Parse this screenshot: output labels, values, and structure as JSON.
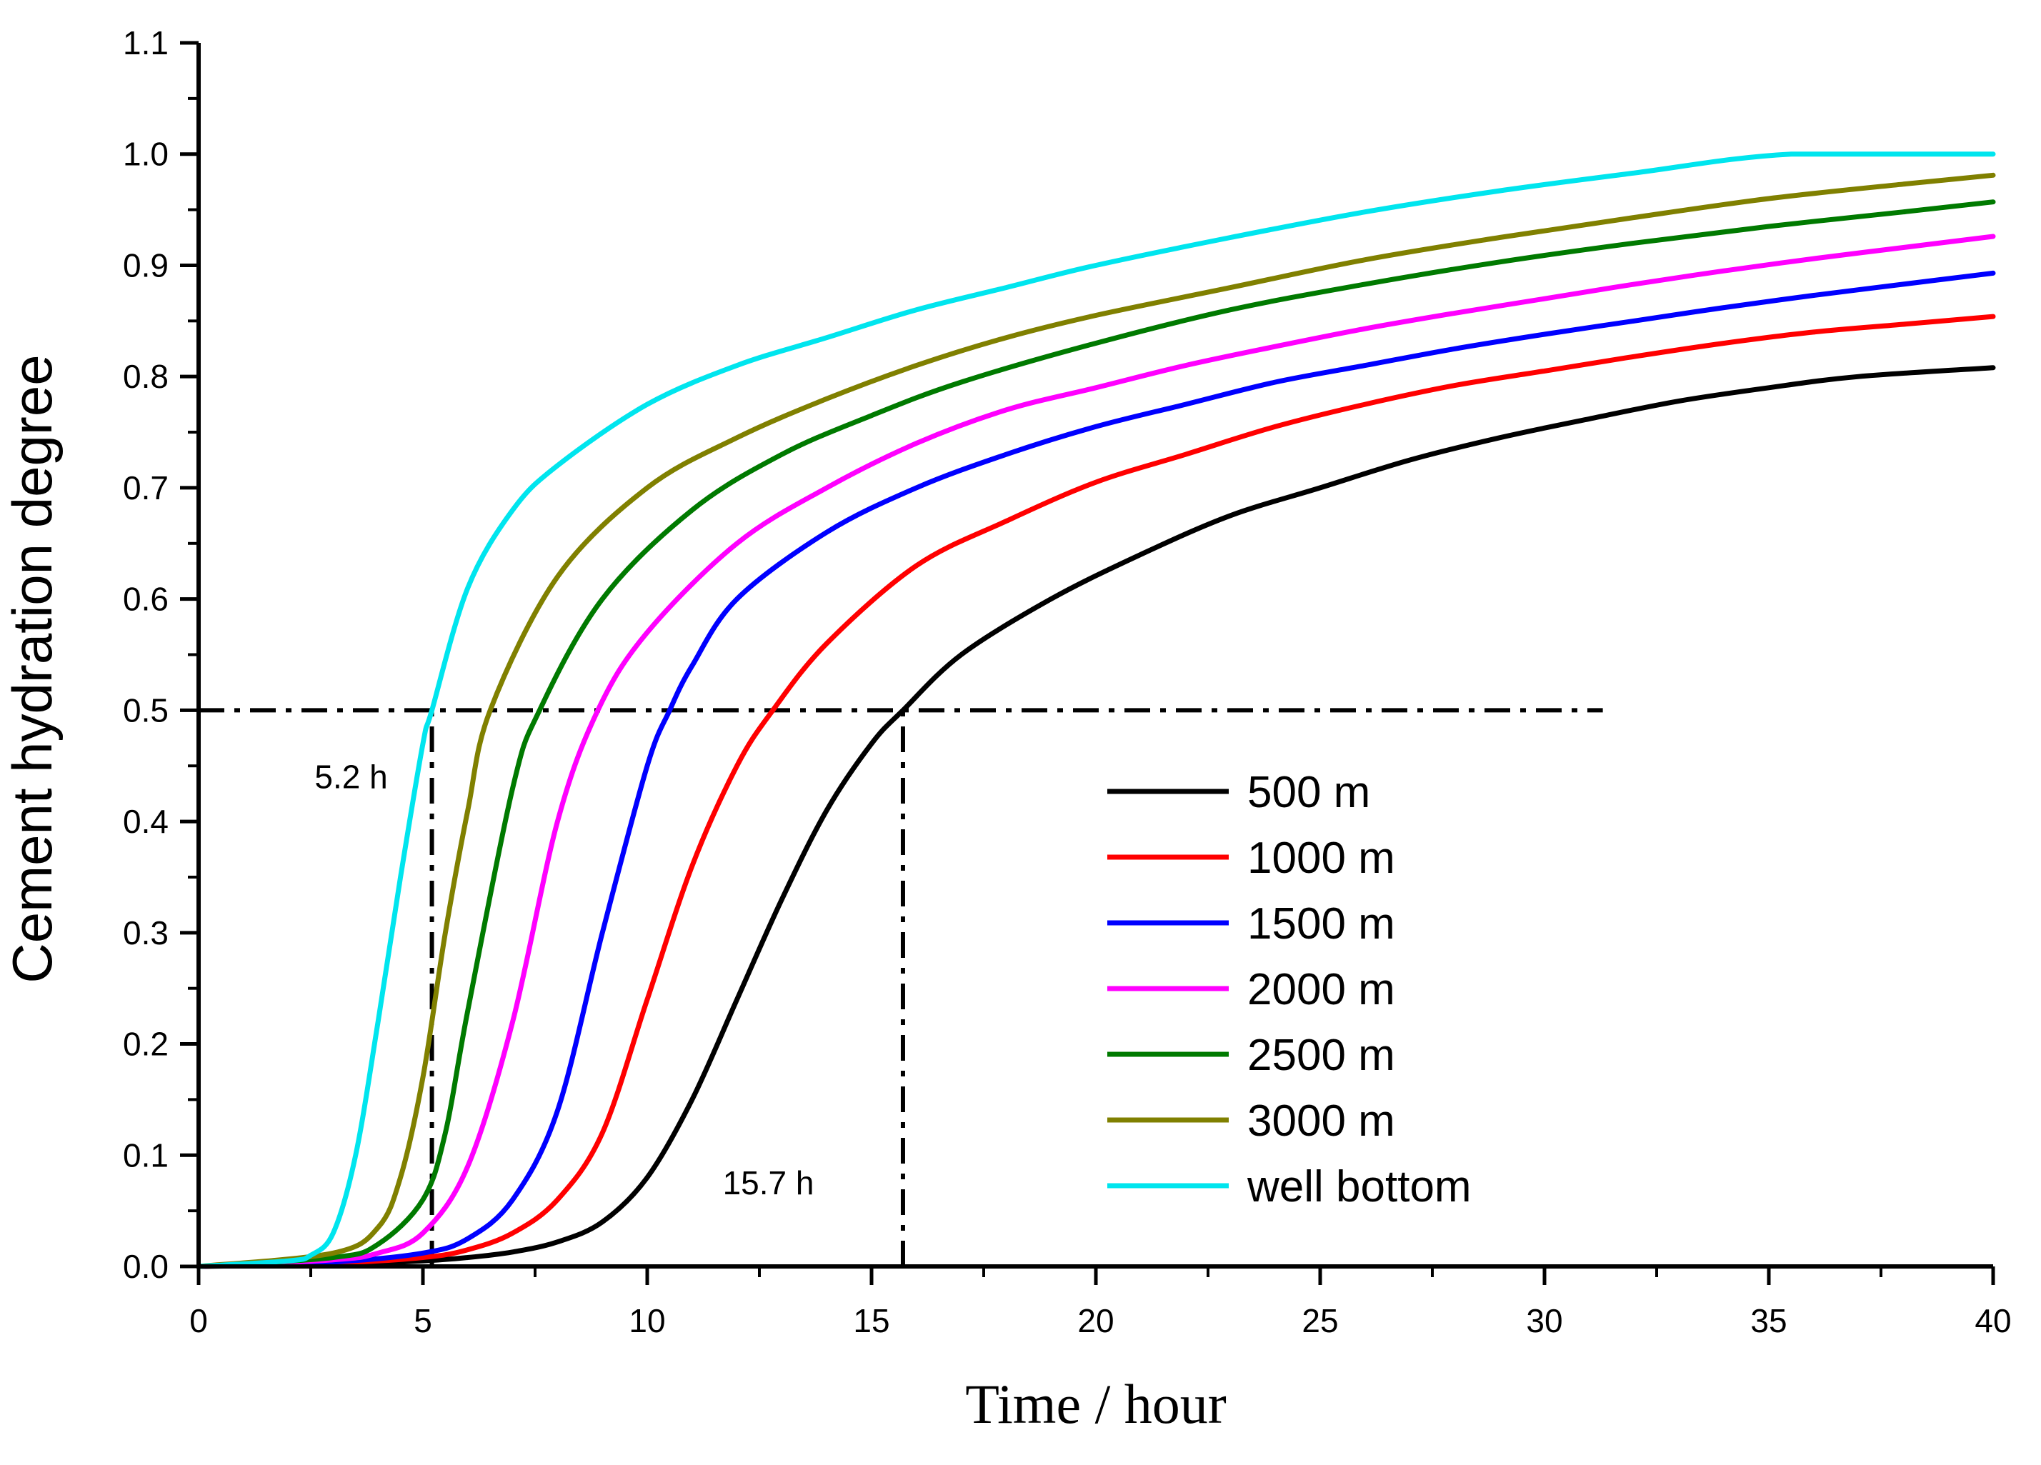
{
  "chart_data": {
    "type": "line",
    "title": "",
    "xlabel": "Time / hour",
    "ylabel": "Cement hydration degree",
    "xlim": [
      0,
      40
    ],
    "ylim": [
      0,
      1.1
    ],
    "x_ticks": [
      0,
      5,
      10,
      15,
      20,
      25,
      30,
      35,
      40
    ],
    "x_tick_labels": [
      "0",
      "5",
      "10",
      "15",
      "20",
      "25",
      "30",
      "35",
      "40"
    ],
    "y_ticks": [
      0,
      0.1,
      0.2,
      0.3,
      0.4,
      0.5,
      0.6,
      0.7,
      0.8,
      0.9,
      1.0,
      1.1
    ],
    "y_tick_labels": [
      "0.0",
      "0.1",
      "0.2",
      "0.3",
      "0.4",
      "0.5",
      "0.6",
      "0.7",
      "0.8",
      "0.9",
      "1.0",
      "1.1"
    ],
    "grid": false,
    "legend_position": "center-right",
    "series": [
      {
        "name": "500 m",
        "color": "#000000",
        "x": [
          0,
          3,
          5,
          6,
          7,
          8,
          9,
          10,
          11,
          12,
          13,
          14,
          15,
          15.7,
          17,
          19,
          21,
          23,
          25,
          27,
          29,
          31,
          33,
          35,
          37,
          40
        ],
        "y": [
          0,
          0.002,
          0.005,
          0.008,
          0.013,
          0.022,
          0.04,
          0.08,
          0.15,
          0.24,
          0.33,
          0.41,
          0.47,
          0.5,
          0.55,
          0.6,
          0.64,
          0.675,
          0.7,
          0.725,
          0.745,
          0.762,
          0.778,
          0.79,
          0.8,
          0.808
        ]
      },
      {
        "name": "1000 m",
        "color": "#ff0000",
        "x": [
          0,
          3,
          5,
          6,
          7,
          8,
          9,
          10,
          11,
          12,
          12.8,
          14,
          16,
          18,
          20,
          22,
          24,
          26,
          28,
          30,
          32,
          34,
          36,
          38,
          40
        ],
        "y": [
          0,
          0.003,
          0.008,
          0.015,
          0.03,
          0.06,
          0.12,
          0.24,
          0.36,
          0.45,
          0.5,
          0.56,
          0.63,
          0.67,
          0.705,
          0.73,
          0.755,
          0.775,
          0.792,
          0.805,
          0.818,
          0.83,
          0.84,
          0.847,
          0.854
        ]
      },
      {
        "name": "1500 m",
        "color": "#0000ff",
        "x": [
          0,
          3,
          5,
          6,
          7,
          8,
          9,
          10,
          10.5,
          11,
          12,
          14,
          16,
          18,
          20,
          22,
          24,
          26,
          28,
          30,
          32,
          34,
          36,
          38,
          40
        ],
        "y": [
          0,
          0.004,
          0.012,
          0.025,
          0.06,
          0.14,
          0.3,
          0.45,
          0.5,
          0.54,
          0.6,
          0.66,
          0.7,
          0.73,
          0.755,
          0.775,
          0.795,
          0.81,
          0.825,
          0.838,
          0.85,
          0.862,
          0.873,
          0.883,
          0.893
        ]
      },
      {
        "name": "2000 m",
        "color": "#ff00ff",
        "x": [
          0,
          3,
          4,
          5,
          6,
          7,
          8,
          8.9,
          10,
          12,
          14,
          16,
          18,
          20,
          22,
          24,
          26,
          28,
          30,
          32,
          34,
          36,
          38,
          40
        ],
        "y": [
          0,
          0.006,
          0.012,
          0.03,
          0.09,
          0.22,
          0.4,
          0.5,
          0.57,
          0.65,
          0.7,
          0.74,
          0.77,
          0.79,
          0.81,
          0.827,
          0.843,
          0.857,
          0.87,
          0.883,
          0.895,
          0.906,
          0.916,
          0.926
        ]
      },
      {
        "name": "2500 m",
        "color": "#007a00",
        "x": [
          0,
          3,
          4,
          5,
          5.5,
          6,
          7,
          7.6,
          9,
          11,
          13,
          15,
          17,
          20,
          23,
          26,
          29,
          32,
          35,
          38,
          40
        ],
        "y": [
          0,
          0.008,
          0.02,
          0.06,
          0.12,
          0.23,
          0.43,
          0.5,
          0.6,
          0.68,
          0.73,
          0.765,
          0.795,
          0.83,
          0.86,
          0.883,
          0.903,
          0.92,
          0.935,
          0.948,
          0.957
        ]
      },
      {
        "name": "3000 m",
        "color": "#808000",
        "x": [
          0,
          3,
          4,
          4.5,
          5,
          5.5,
          6,
          6.5,
          8,
          10,
          12,
          14,
          16,
          18,
          20,
          23,
          26,
          29,
          32,
          35,
          38,
          40
        ],
        "y": [
          0,
          0.012,
          0.035,
          0.08,
          0.17,
          0.3,
          0.41,
          0.5,
          0.62,
          0.7,
          0.745,
          0.78,
          0.81,
          0.835,
          0.855,
          0.88,
          0.905,
          0.925,
          0.943,
          0.96,
          0.973,
          0.981
        ]
      },
      {
        "name": "well bottom",
        "color": "#00e5ee",
        "x": [
          0,
          2,
          2.5,
          3,
          3.5,
          4,
          4.5,
          5,
          5.2,
          6,
          7,
          8,
          10,
          12,
          14,
          16,
          18,
          20,
          23,
          26,
          29,
          32,
          35.5,
          40
        ],
        "y": [
          0,
          0.005,
          0.01,
          0.03,
          0.1,
          0.22,
          0.35,
          0.47,
          0.5,
          0.61,
          0.68,
          0.72,
          0.775,
          0.81,
          0.835,
          0.86,
          0.88,
          0.9,
          0.925,
          0.948,
          0.967,
          0.983,
          1.0,
          1.0
        ]
      }
    ],
    "reference_lines": [
      {
        "name": "y-0.5-line",
        "orientation": "horizontal",
        "y": 0.5,
        "x_from": 0,
        "x_to": 31.3
      },
      {
        "name": "x-5.2-line",
        "orientation": "vertical",
        "x": 5.2,
        "y_from": 0,
        "y_to": 0.5
      },
      {
        "name": "x-15.7-line",
        "orientation": "vertical",
        "x": 15.7,
        "y_from": 0,
        "y_to": 0.5
      }
    ],
    "annotations": [
      {
        "name": "annot-5-2-h",
        "text": "5.2 h",
        "x": 3.4,
        "y": 0.43
      },
      {
        "name": "annot-15-7-h",
        "text": "15.7 h",
        "x": 12.7,
        "y": 0.065
      }
    ]
  }
}
